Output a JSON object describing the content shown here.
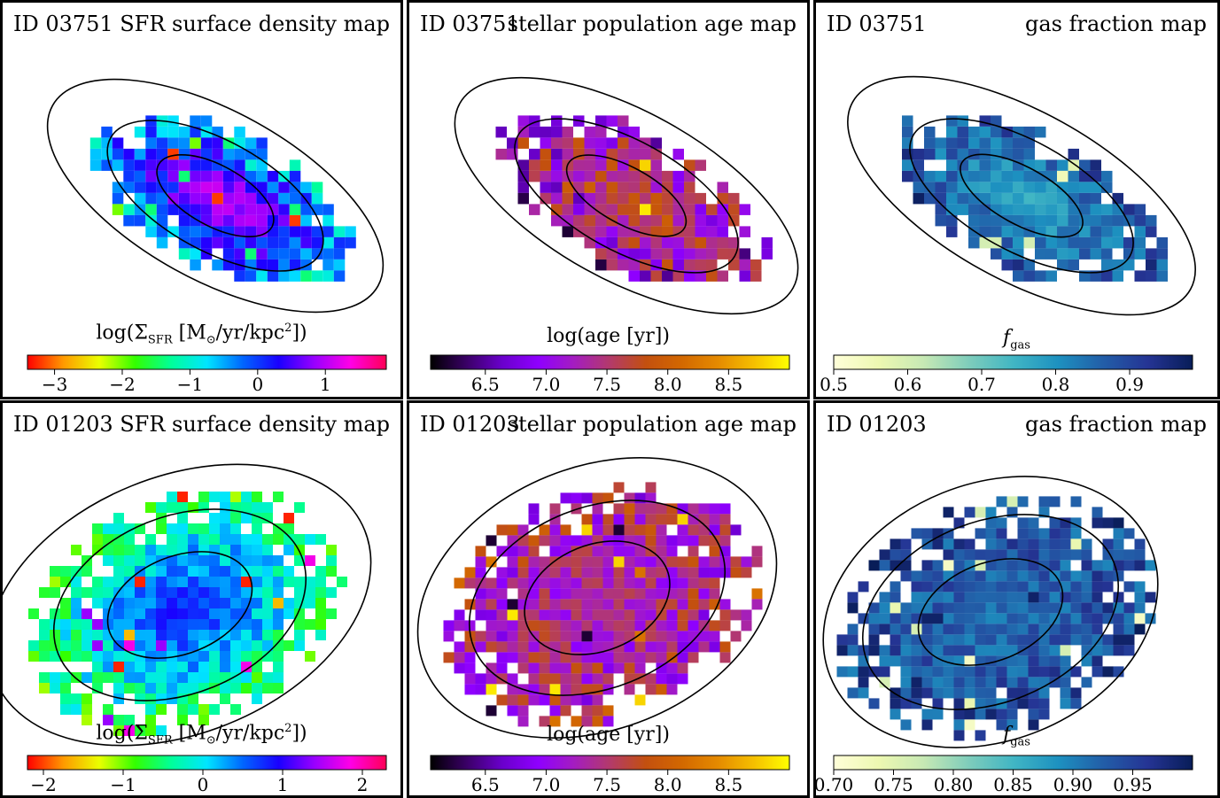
{
  "chart_data": [
    {
      "type": "heatmap",
      "galaxy_id": "ID 03751",
      "title": "SFR surface density map",
      "colorbar": {
        "label": "log(Σ_SFR [M_⊙/yr/kpc²])",
        "label_parts": {
          "pre": "log(Σ",
          "sub": "SFR",
          "mid": " [M",
          "sub2": "⊙",
          "post": "/yr/kpc",
          "sup": "2",
          "end": "])"
        },
        "range": [
          -3.4,
          1.9
        ],
        "ticks": [
          {
            "value": -3,
            "label": "−3"
          },
          {
            "value": -2,
            "label": "−2"
          },
          {
            "value": -1,
            "label": "−1"
          },
          {
            "value": 0,
            "label": "0"
          },
          {
            "value": 1,
            "label": "1"
          }
        ],
        "colormap": "gist_rainbow_r",
        "stops": [
          "#ff0000",
          "#ff9900",
          "#eaff00",
          "#33ff00",
          "#00ff99",
          "#00e5ff",
          "#0066ff",
          "#1a00ff",
          "#9900ff",
          "#ff00e6",
          "#ff0055"
        ]
      },
      "map": {
        "center_value": 1.1,
        "edge_value": -0.6,
        "noise": 0.55,
        "outliers": [
          -3.2,
          -2.0,
          -1.4,
          -1.0
        ]
      },
      "contours": 3,
      "grid": false
    },
    {
      "type": "heatmap",
      "galaxy_id": "ID 03751",
      "title": "stellar population age map",
      "colorbar": {
        "label": "log(age [yr])",
        "label_parts": {
          "pre": "log(age [yr])"
        },
        "range": [
          6.05,
          9.0
        ],
        "ticks": [
          {
            "value": 6.5,
            "label": "6.5"
          },
          {
            "value": 7.0,
            "label": "7.0"
          },
          {
            "value": 7.5,
            "label": "7.5"
          },
          {
            "value": 8.0,
            "label": "8.0"
          },
          {
            "value": 8.5,
            "label": "8.5"
          }
        ],
        "colormap": "gnuplot",
        "stops": [
          "#000000",
          "#3a0066",
          "#6a00cc",
          "#8f00ff",
          "#a41dc0",
          "#b33a6a",
          "#c3500f",
          "#d36800",
          "#e58a00",
          "#f5bf00",
          "#ffff00"
        ]
      },
      "map": {
        "center_value": 7.9,
        "edge_value": 7.0,
        "noise": 0.6,
        "outliers": [
          6.2,
          8.9,
          8.8,
          6.6
        ]
      },
      "contours": 3,
      "grid": false
    },
    {
      "type": "heatmap",
      "galaxy_id": "ID 03751",
      "title": "gas fraction map",
      "colorbar": {
        "label": "f_gas",
        "label_parts": {
          "pre": "f",
          "sub": "gas"
        },
        "range": [
          0.5,
          0.985
        ],
        "ticks": [
          {
            "value": 0.5,
            "label": "0.5"
          },
          {
            "value": 0.6,
            "label": "0.6"
          },
          {
            "value": 0.7,
            "label": "0.7"
          },
          {
            "value": 0.8,
            "label": "0.8"
          },
          {
            "value": 0.9,
            "label": "0.9"
          }
        ],
        "colormap": "YlGnBu",
        "stops": [
          "#ffffd9",
          "#edf8b1",
          "#c7e9b4",
          "#7fcdbb",
          "#41b6c4",
          "#1d91c0",
          "#225ea8",
          "#253494",
          "#081d58"
        ]
      },
      "map": {
        "center_value": 0.76,
        "edge_value": 0.9,
        "noise": 0.06,
        "outliers": [
          0.55,
          0.58,
          0.6,
          0.62
        ]
      },
      "contours": 3,
      "grid": false
    },
    {
      "type": "heatmap",
      "galaxy_id": "ID 01203",
      "title": "SFR surface density map",
      "colorbar": {
        "label": "log(Σ_SFR [M_⊙/yr/kpc²])",
        "label_parts": {
          "pre": "log(Σ",
          "sub": "SFR",
          "mid": " [M",
          "sub2": "⊙",
          "post": "/yr/kpc",
          "sup": "2",
          "end": "])"
        },
        "range": [
          -2.2,
          2.3
        ],
        "ticks": [
          {
            "value": -2,
            "label": "−2"
          },
          {
            "value": -1,
            "label": "−1"
          },
          {
            "value": 0,
            "label": "0"
          },
          {
            "value": 1,
            "label": "1"
          },
          {
            "value": 2,
            "label": "2"
          }
        ],
        "colormap": "gist_rainbow_r",
        "stops": [
          "#ff0000",
          "#ff9900",
          "#eaff00",
          "#33ff00",
          "#00ff99",
          "#00e5ff",
          "#0066ff",
          "#1a00ff",
          "#9900ff",
          "#ff00e6",
          "#ff0055"
        ]
      },
      "map": {
        "center_value": 0.9,
        "edge_value": -0.6,
        "noise": 0.45,
        "outliers": [
          -2.1,
          -1.6,
          1.8,
          1.4
        ]
      },
      "contours": 3,
      "grid": false
    },
    {
      "type": "heatmap",
      "galaxy_id": "ID 01203",
      "title": "stellar population age map",
      "colorbar": {
        "label": "log(age [yr])",
        "label_parts": {
          "pre": "log(age [yr])"
        },
        "range": [
          6.05,
          9.0
        ],
        "ticks": [
          {
            "value": 6.5,
            "label": "6.5"
          },
          {
            "value": 7.0,
            "label": "7.0"
          },
          {
            "value": 7.5,
            "label": "7.5"
          },
          {
            "value": 8.0,
            "label": "8.0"
          },
          {
            "value": 8.5,
            "label": "8.5"
          }
        ],
        "colormap": "gnuplot",
        "stops": [
          "#000000",
          "#3a0066",
          "#6a00cc",
          "#8f00ff",
          "#a41dc0",
          "#b33a6a",
          "#c3500f",
          "#d36800",
          "#e58a00",
          "#f5bf00",
          "#ffff00"
        ]
      },
      "map": {
        "center_value": 7.3,
        "edge_value": 7.4,
        "noise": 0.55,
        "outliers": [
          6.2,
          8.9,
          8.8,
          8.2
        ]
      },
      "contours": 3,
      "grid": false
    },
    {
      "type": "heatmap",
      "galaxy_id": "ID 01203",
      "title": "gas fraction map",
      "colorbar": {
        "label": "f_gas",
        "label_parts": {
          "pre": "f",
          "sub": "gas"
        },
        "range": [
          0.7,
          1.0
        ],
        "ticks": [
          {
            "value": 0.7,
            "label": "0.70"
          },
          {
            "value": 0.75,
            "label": "0.75"
          },
          {
            "value": 0.8,
            "label": "0.80"
          },
          {
            "value": 0.85,
            "label": "0.85"
          },
          {
            "value": 0.9,
            "label": "0.90"
          },
          {
            "value": 0.95,
            "label": "0.95"
          }
        ],
        "colormap": "YlGnBu",
        "stops": [
          "#ffffd9",
          "#edf8b1",
          "#c7e9b4",
          "#7fcdbb",
          "#41b6c4",
          "#1d91c0",
          "#225ea8",
          "#253494",
          "#081d58"
        ]
      },
      "map": {
        "center_value": 0.91,
        "edge_value": 0.95,
        "noise": 0.04,
        "outliers": [
          0.72,
          0.74,
          0.76,
          0.99
        ]
      },
      "contours": 3,
      "grid": false
    }
  ]
}
